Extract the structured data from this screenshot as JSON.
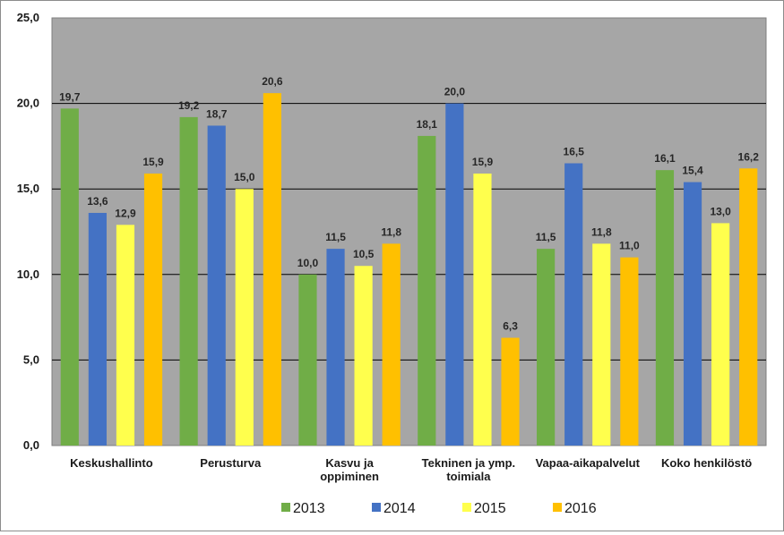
{
  "chart_data": {
    "type": "bar",
    "categories": [
      [
        "Keskushallinto"
      ],
      [
        "Perusturva"
      ],
      [
        "Kasvu ja",
        "oppiminen"
      ],
      [
        "Tekninen ja ymp.",
        "toimiala"
      ],
      [
        "Vapaa-aikapalvelut"
      ],
      [
        "Koko henkilöstö"
      ]
    ],
    "series": [
      {
        "name": "2013",
        "color": "#70ad47",
        "values": [
          19.7,
          19.2,
          10.0,
          18.1,
          11.5,
          16.1
        ]
      },
      {
        "name": "2014",
        "color": "#4472c4",
        "values": [
          13.6,
          18.7,
          11.5,
          20.0,
          16.5,
          15.4
        ]
      },
      {
        "name": "2015",
        "color": "#ffff4d",
        "values": [
          12.9,
          15.0,
          10.5,
          15.9,
          11.8,
          13.0
        ]
      },
      {
        "name": "2016",
        "color": "#ffc000",
        "values": [
          15.9,
          20.6,
          11.8,
          6.3,
          11.0,
          16.2
        ]
      }
    ],
    "y_ticks": [
      "0,0",
      "5,0",
      "10,0",
      "15,0",
      "20,0",
      "25,0"
    ],
    "ylim": [
      0,
      25
    ],
    "grid": true,
    "plot_background": "#a6a6a6",
    "legend_position": "bottom",
    "decimal_separator": ","
  }
}
